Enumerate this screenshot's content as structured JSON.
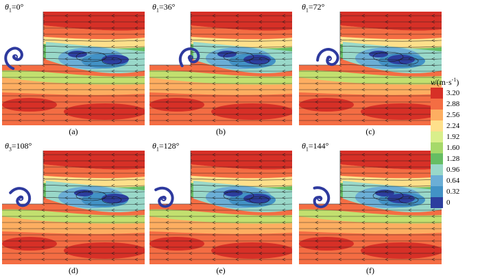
{
  "panels": [
    {
      "theta_sub": "1",
      "angle": "=0°",
      "caption": "(a)",
      "step_width": 18,
      "plate_rotation": 0
    },
    {
      "theta_sub": "1",
      "angle": "=36°",
      "caption": "(b)",
      "step_width": 58,
      "plate_rotation": 36
    },
    {
      "theta_sub": "1",
      "angle": "=72°",
      "caption": "(c)",
      "step_width": 42,
      "plate_rotation": 72
    },
    {
      "theta_sub": "3",
      "angle": "=108°",
      "caption": "(d)",
      "step_width": 26,
      "plate_rotation": 108
    },
    {
      "theta_sub": "1",
      "angle": "=128°",
      "caption": "(e)",
      "step_width": 20,
      "plate_rotation": 128
    },
    {
      "theta_sub": "1",
      "angle": "=144°",
      "caption": "(f)",
      "step_width": 30,
      "plate_rotation": 144
    }
  ],
  "legend": {
    "variable": "v",
    "unit_prefix": "/(m·s",
    "unit_exponent": "-1",
    "unit_suffix": ")",
    "ticks": [
      "3.20",
      "2.88",
      "2.56",
      "2.24",
      "1.92",
      "1.60",
      "1.28",
      "0.96",
      "0.64",
      "0.32",
      "0"
    ],
    "colors": [
      "#d73027",
      "#f46d43",
      "#fdae61",
      "#fee08b",
      "#d9ef8b",
      "#a6d96a",
      "#66bd63",
      "#99d8c9",
      "#6baed6",
      "#4292c6",
      "#2c3e9e"
    ]
  }
}
